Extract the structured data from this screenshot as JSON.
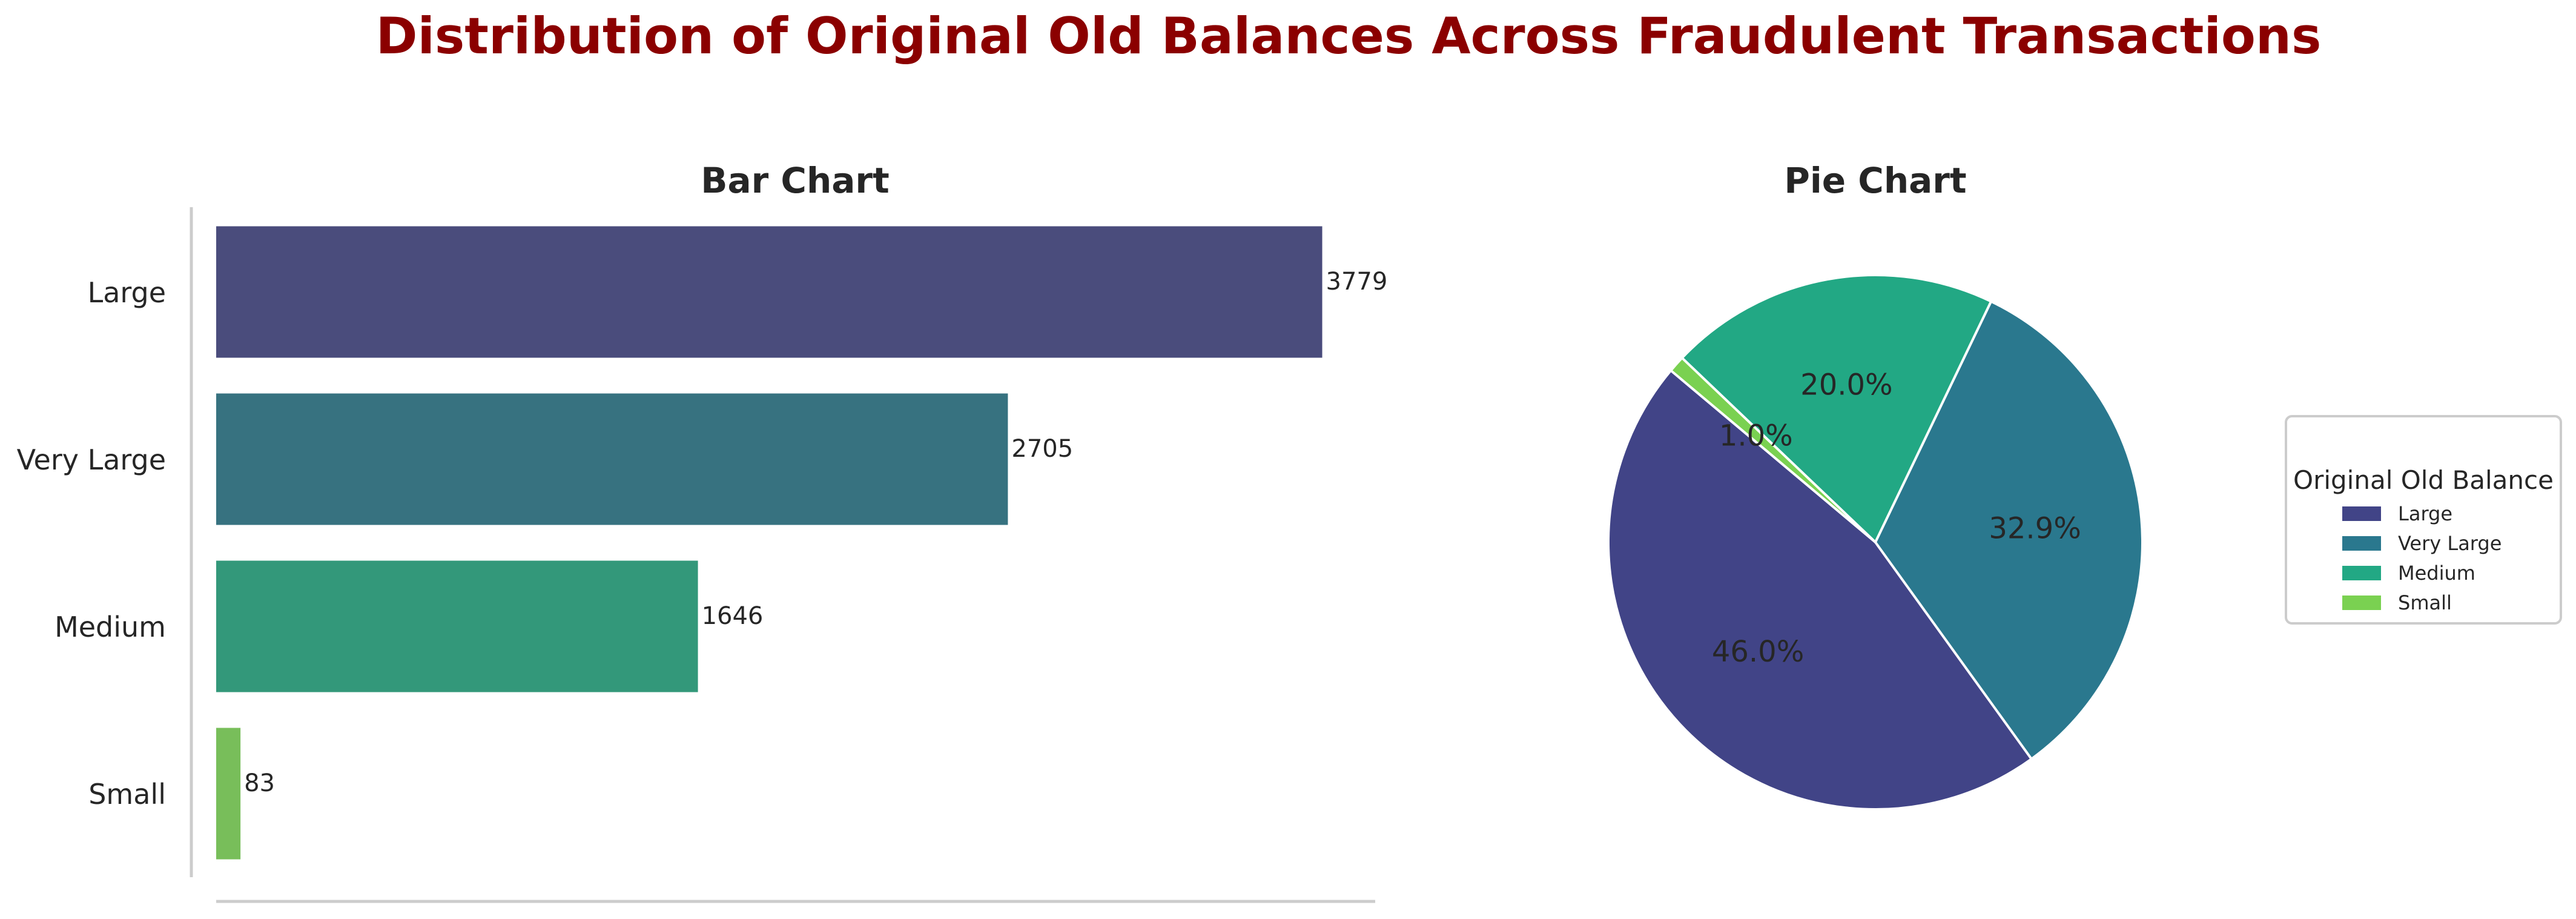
{
  "figure": {
    "suptitle": "Distribution of Original Old Balances Across Fraudulent Transactions",
    "suptitle_color": "#8b0000"
  },
  "chart_data": [
    {
      "type": "bar",
      "orientation": "horizontal",
      "title": "Bar Chart",
      "categories": [
        "Large",
        "Very Large",
        "Medium",
        "Small"
      ],
      "values": [
        3779,
        2705,
        1646,
        83
      ],
      "colors": [
        "#4a4c7c",
        "#377280",
        "#33987a",
        "#78be5a"
      ],
      "xlim": [
        0,
        3960
      ],
      "grid": false,
      "data_labels": true
    },
    {
      "type": "pie",
      "title": "Pie Chart",
      "categories": [
        "Large",
        "Very Large",
        "Medium",
        "Small"
      ],
      "values": [
        46.0,
        32.9,
        20.0,
        1.0
      ],
      "labels": [
        "46.0%",
        "32.9%",
        "20.0%",
        "1.0%"
      ],
      "colors": [
        "#414487",
        "#2a788e",
        "#22a884",
        "#7ad151"
      ],
      "start_angle_deg": 140,
      "direction": "counterclockwise",
      "legend": {
        "title": "Original Old Balance",
        "entries": [
          "Large",
          "Very Large",
          "Medium",
          "Small"
        ],
        "placement": "right"
      }
    }
  ]
}
